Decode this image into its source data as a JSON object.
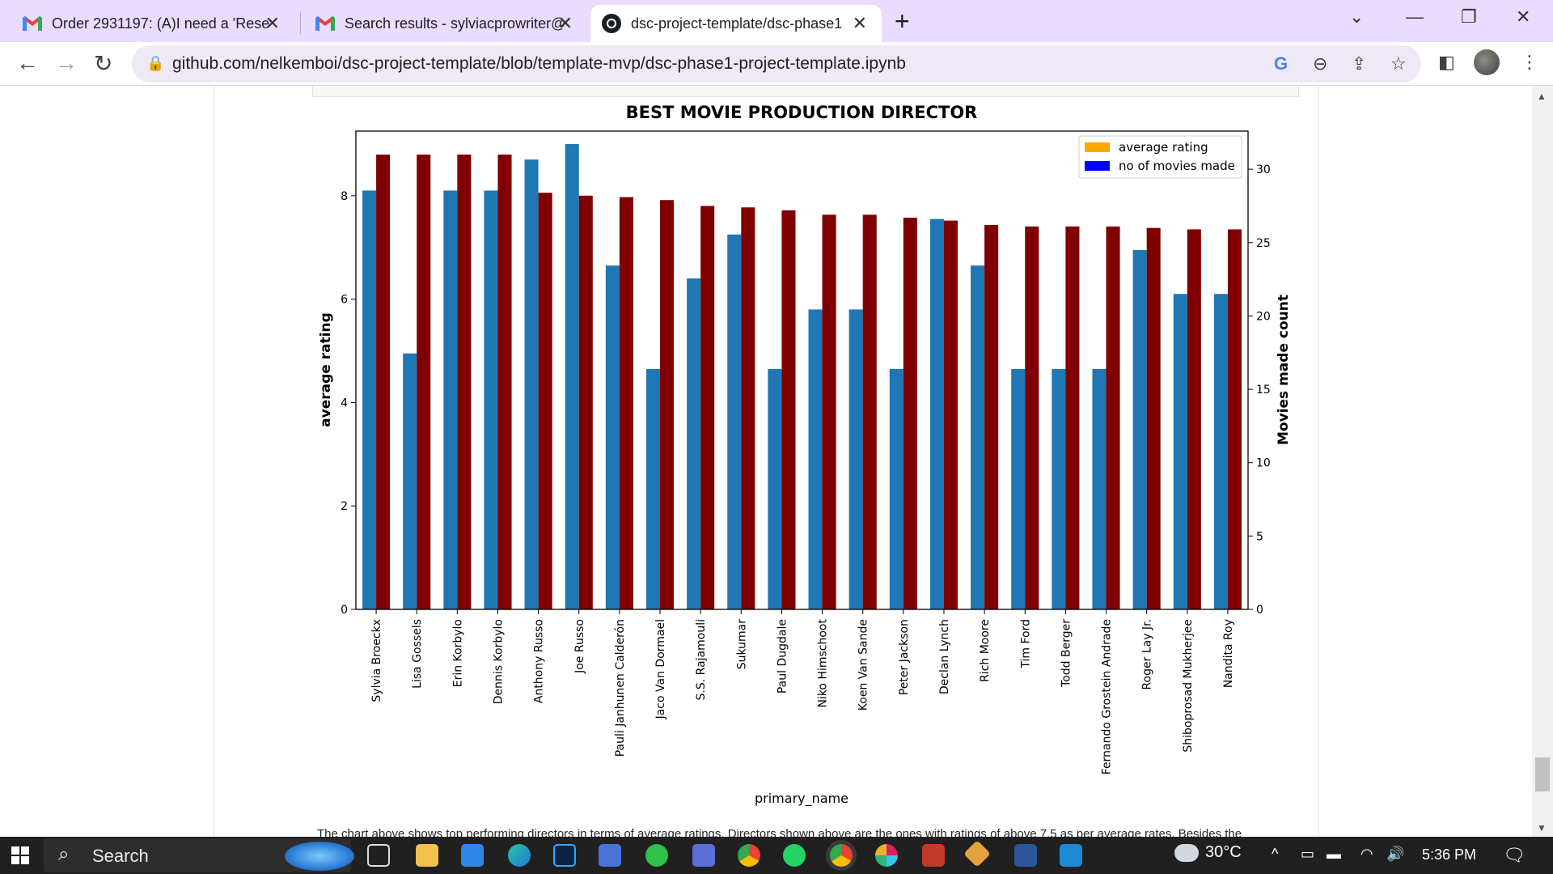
{
  "browser": {
    "tabs": [
      {
        "label": "Order 2931197: (A)I need a 'Rese",
        "icon": "gmail-icon",
        "active": false
      },
      {
        "label": "Search results - sylviacprowriter@",
        "icon": "gmail-icon",
        "active": false
      },
      {
        "label": "dsc-project-template/dsc-phase1",
        "icon": "github-icon",
        "active": true
      }
    ],
    "new_tab": "+",
    "url": "github.com/nelkemboi/dsc-project-template/blob/template-mvp/dsc-phase1-project-template.ipynb"
  },
  "page": {
    "below_chart_text": "The chart above shows top performing directors in terms of average ratings. Directors shown above are the ones with ratings of above 7.5 as per average rates. Besides the"
  },
  "chart_data": {
    "type": "bar",
    "title": "BEST MOVIE PRODUCTION DIRECTOR",
    "xlabel": "primary_name",
    "ylabel": "average rating",
    "y2label": "Movies made count",
    "ylim": [
      0,
      9.25
    ],
    "y2lim": [
      0,
      32.6
    ],
    "yticks": [
      0,
      2,
      4,
      6,
      8
    ],
    "y2ticks": [
      0,
      5,
      10,
      15,
      20,
      25,
      30
    ],
    "legend": {
      "position": "top-right",
      "entries": [
        {
          "label": "average rating",
          "color": "#ffa500"
        },
        {
          "label": "no of movies made",
          "color": "#0000ff"
        }
      ]
    },
    "colors": {
      "rating_bar": "#1f77b4",
      "count_bar": "#800000"
    },
    "categories": [
      "Sylvia Broeckx",
      "Lisa Gossels",
      "Erin Korbylo",
      "Dennis Korbylo",
      "Anthony Russo",
      "Joe Russo",
      "Pauli Janhunen Calderón",
      "Jaco Van Dormael",
      "S.S. Rajamouli",
      "Sukumar",
      "Paul Dugdale",
      "Niko Himschoot",
      "Koen Van Sande",
      "Peter Jackson",
      "Declan Lynch",
      "Rich Moore",
      "Tim Ford",
      "Todd Berger",
      "Fernando Grostein Andrade",
      "Roger Lay Jr.",
      "Shiboprosad Mukherjee",
      "Nandita Roy"
    ],
    "series": [
      {
        "name": "average rating",
        "axis": "left",
        "values": [
          8.1,
          4.95,
          8.1,
          8.1,
          8.7,
          9.0,
          6.65,
          4.65,
          6.4,
          7.25,
          4.65,
          5.8,
          5.8,
          4.65,
          7.55,
          6.65,
          4.65,
          4.65,
          4.65,
          6.95,
          6.1,
          6.1
        ]
      },
      {
        "name": "no of movies made",
        "axis": "right",
        "values": [
          31.0,
          31.0,
          31.0,
          31.0,
          28.4,
          28.2,
          28.1,
          27.9,
          27.5,
          27.4,
          27.2,
          26.9,
          26.9,
          26.7,
          26.5,
          26.2,
          26.1,
          26.1,
          26.1,
          26.0,
          25.9,
          25.9
        ]
      }
    ]
  },
  "taskbar": {
    "search_label": "Search",
    "weather": "30°C",
    "time": "5:36 PM"
  }
}
